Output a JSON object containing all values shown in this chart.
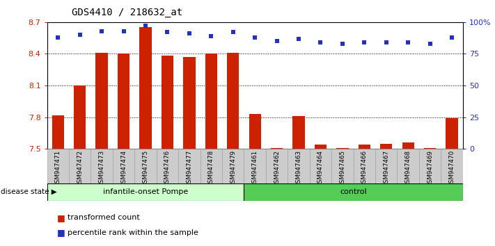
{
  "title": "GDS4410 / 218632_at",
  "samples": [
    "GSM947471",
    "GSM947472",
    "GSM947473",
    "GSM947474",
    "GSM947475",
    "GSM947476",
    "GSM947477",
    "GSM947478",
    "GSM947479",
    "GSM947461",
    "GSM947462",
    "GSM947463",
    "GSM947464",
    "GSM947465",
    "GSM947466",
    "GSM947467",
    "GSM947468",
    "GSM947469",
    "GSM947470"
  ],
  "bar_values": [
    7.82,
    8.1,
    8.41,
    8.4,
    8.65,
    8.38,
    8.37,
    8.4,
    8.41,
    7.83,
    7.51,
    7.81,
    7.54,
    7.51,
    7.54,
    7.55,
    7.56,
    7.51,
    7.79
  ],
  "percentile_values": [
    88,
    90,
    93,
    93,
    97,
    92,
    91,
    89,
    92,
    88,
    85,
    87,
    84,
    83,
    84,
    84,
    84,
    83,
    88
  ],
  "ymin": 7.5,
  "ymax": 8.7,
  "yticks": [
    7.5,
    7.8,
    8.1,
    8.4,
    8.7
  ],
  "right_yticks": [
    0,
    25,
    50,
    75,
    100
  ],
  "right_ytick_labels": [
    "0",
    "25",
    "50",
    "75",
    "100%"
  ],
  "bar_color": "#cc2200",
  "percentile_color": "#2233bb",
  "group1_label": "infantile-onset Pompe",
  "group2_label": "control",
  "group1_count": 9,
  "group2_count": 10,
  "group1_bg": "#ccffcc",
  "group2_bg": "#55cc55",
  "tick_bg": "#cccccc",
  "disease_state_label": "disease state",
  "legend_bar_label": "transformed count",
  "legend_pct_label": "percentile rank within the sample",
  "title_fontsize": 10,
  "axis_label_color_left": "#cc2200",
  "axis_label_color_right": "#2233bb"
}
